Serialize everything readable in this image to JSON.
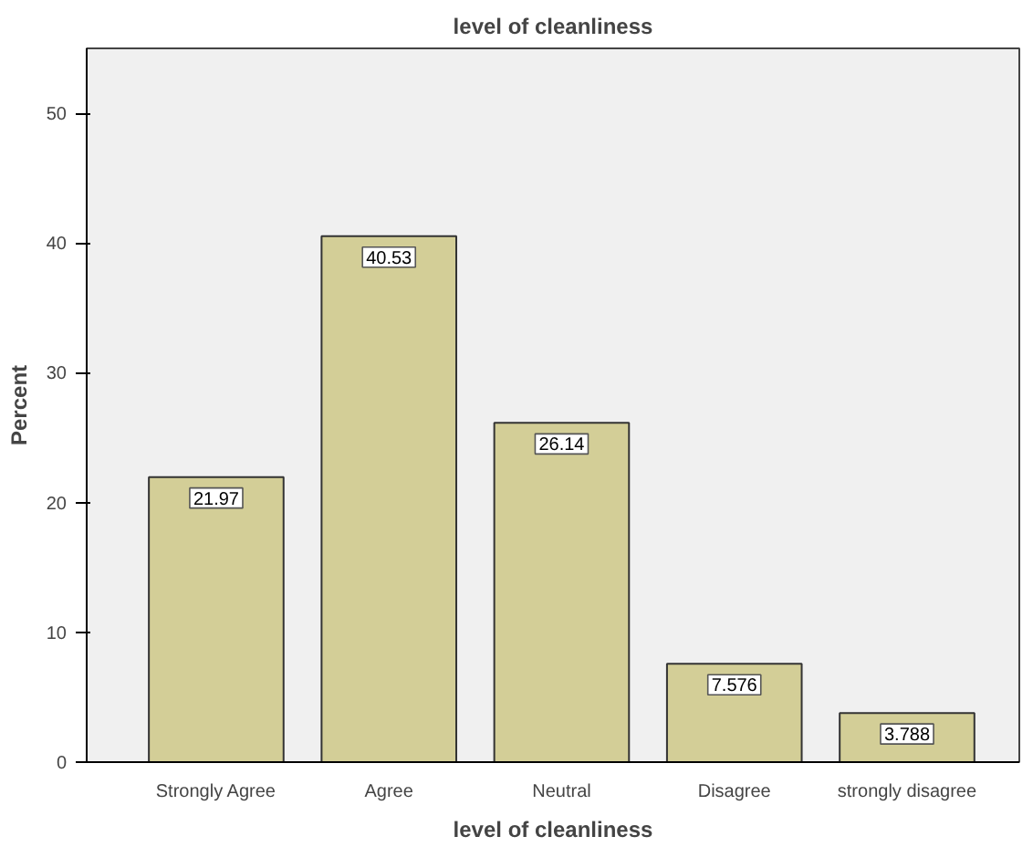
{
  "chart_data": {
    "type": "bar",
    "title": "level of cleanliness",
    "xlabel": "level of cleanliness",
    "ylabel": "Percent",
    "categories": [
      "Strongly Agree",
      "Agree",
      "Neutral",
      "Disagree",
      "strongly disagree"
    ],
    "values": [
      21.97,
      40.53,
      26.14,
      7.576,
      3.788
    ],
    "color": "#d3ce97",
    "ylim": [
      0,
      55
    ],
    "yticks": [
      0,
      10,
      20,
      30,
      40,
      50
    ],
    "grid": false,
    "data_labels": true
  }
}
